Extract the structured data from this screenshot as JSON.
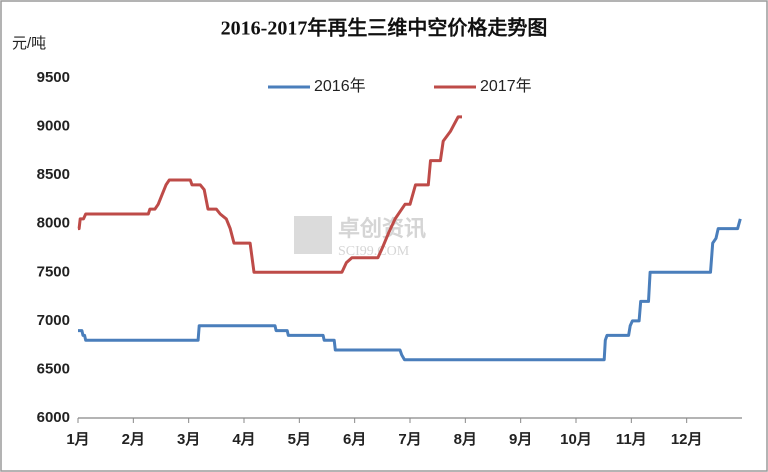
{
  "chart_data": {
    "type": "line",
    "title": "2016-2017年再生三维中空价格走势图",
    "y_unit_label": "元/吨",
    "watermark": [
      "卓创资讯",
      "SCI99.COM"
    ],
    "xlim": [
      1,
      13
    ],
    "xticks": [
      {
        "value": 1,
        "label": "1月"
      },
      {
        "value": 2,
        "label": "2月"
      },
      {
        "value": 3,
        "label": "3月"
      },
      {
        "value": 4,
        "label": "4月"
      },
      {
        "value": 5,
        "label": "5月"
      },
      {
        "value": 6,
        "label": "6月"
      },
      {
        "value": 7,
        "label": "7月"
      },
      {
        "value": 8,
        "label": "8月"
      },
      {
        "value": 9,
        "label": "9月"
      },
      {
        "value": 10,
        "label": "10月"
      },
      {
        "value": 11,
        "label": "11月"
      },
      {
        "value": 12,
        "label": "12月"
      }
    ],
    "ylim": [
      6000,
      9500
    ],
    "yticks": [
      6000,
      6500,
      7000,
      7500,
      8000,
      8500,
      9000,
      9500
    ],
    "grid": false,
    "legend": "top",
    "series": [
      {
        "name": "2016年",
        "color": "#4a7ebb",
        "x": [
          1.0,
          1.07,
          1.09,
          1.12,
          1.14,
          3.17,
          3.19,
          4.56,
          4.58,
          4.78,
          4.8,
          5.43,
          5.45,
          5.63,
          5.65,
          6.82,
          6.85,
          6.9,
          10.51,
          10.53,
          10.56,
          10.95,
          10.98,
          11.02,
          11.14,
          11.17,
          11.31,
          11.34,
          12.43,
          12.47,
          12.53,
          12.57,
          12.92,
          12.97
        ],
        "values": [
          6900,
          6900,
          6850,
          6850,
          6800,
          6800,
          6950,
          6950,
          6900,
          6900,
          6850,
          6850,
          6800,
          6800,
          6700,
          6700,
          6650,
          6600,
          6600,
          6800,
          6850,
          6850,
          6950,
          7000,
          7000,
          7200,
          7200,
          7500,
          7500,
          7800,
          7850,
          7950,
          7950,
          8050
        ]
      },
      {
        "name": "2017年",
        "color": "#be4b48",
        "x": [
          1.0,
          1.02,
          1.04,
          1.1,
          1.14,
          2.27,
          2.3,
          2.39,
          2.45,
          2.52,
          2.59,
          2.65,
          3.03,
          3.06,
          3.21,
          3.28,
          3.35,
          3.5,
          3.57,
          3.68,
          3.75,
          3.82,
          4.11,
          4.18,
          5.77,
          5.85,
          5.95,
          6.42,
          6.5,
          6.61,
          6.73,
          6.91,
          7.0,
          7.1,
          7.33,
          7.37,
          7.55,
          7.6,
          7.73,
          7.87,
          7.94
        ],
        "values": [
          7950,
          7950,
          8050,
          8050,
          8100,
          8100,
          8150,
          8150,
          8200,
          8300,
          8400,
          8450,
          8450,
          8400,
          8400,
          8350,
          8150,
          8150,
          8100,
          8050,
          7950,
          7800,
          7800,
          7500,
          7500,
          7600,
          7650,
          7650,
          7750,
          7900,
          8050,
          8200,
          8200,
          8400,
          8400,
          8650,
          8650,
          8850,
          8950,
          9100,
          9100
        ]
      }
    ]
  }
}
